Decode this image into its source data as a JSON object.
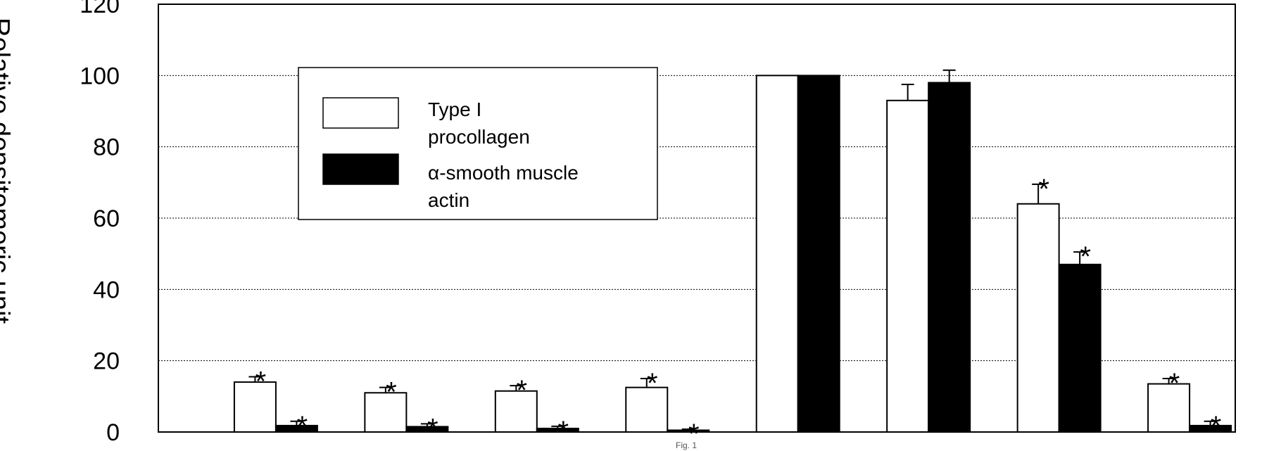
{
  "chart_data": {
    "type": "bar",
    "title": "",
    "xlabel": "",
    "ylabel": "Relative densitomeric unit",
    "ylim": [
      0,
      120
    ],
    "yticks": [
      "0",
      "20",
      "40",
      "60",
      "80",
      "100",
      "120"
    ],
    "grid": "horizontal dotted",
    "legend_position": "top-left",
    "categories": [
      "",
      "",
      "",
      "",
      "",
      "",
      "",
      ""
    ],
    "series": [
      {
        "name": "Type I procollagen",
        "legend_lines": [
          "Type I",
          "procollagen"
        ],
        "color": "#ffffff",
        "values": [
          14,
          11,
          11.5,
          12.5,
          100,
          93,
          64,
          13.5
        ],
        "errors": [
          1.5,
          1.5,
          1.5,
          2.5,
          0,
          4.5,
          5.5,
          1.5
        ],
        "significant": [
          true,
          true,
          true,
          true,
          false,
          false,
          true,
          true
        ]
      },
      {
        "name": "α-smooth muscle actin",
        "legend_lines": [
          "α-smooth muscle",
          "actin"
        ],
        "color": "#000000",
        "values": [
          1.8,
          1.5,
          1,
          0.5,
          100,
          98,
          47,
          1.8
        ],
        "errors": [
          1.2,
          0.8,
          0.6,
          0.3,
          0,
          3.5,
          3.5,
          1.2
        ],
        "significant": [
          true,
          true,
          true,
          true,
          false,
          false,
          true,
          true
        ]
      }
    ],
    "significance_marker": "*",
    "footer_mark": "Fig. 1"
  }
}
